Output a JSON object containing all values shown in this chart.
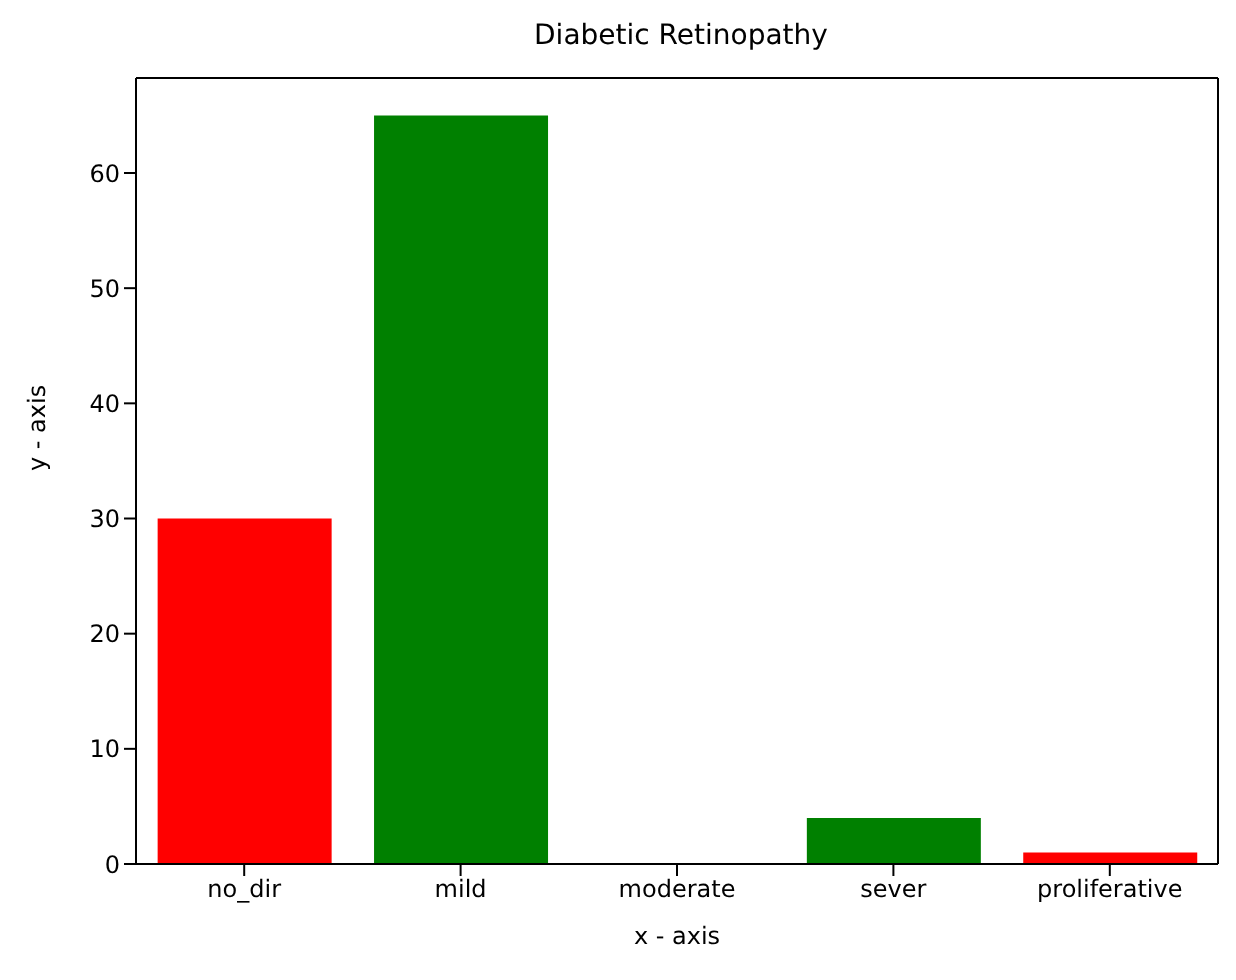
{
  "chart_data": {
    "type": "bar",
    "title": "Diabetic Retinopathy",
    "xlabel": "x - axis",
    "ylabel": "y - axis",
    "categories": [
      "no_dir",
      "mild",
      "moderate",
      "sever",
      "proliferative"
    ],
    "values": [
      30,
      65,
      0,
      4,
      1
    ],
    "colors": [
      "#ff0000",
      "#008000",
      "#ff0000",
      "#008000",
      "#ff0000"
    ],
    "ylim": [
      0,
      68.25
    ],
    "yticks": [
      0,
      10,
      20,
      30,
      40,
      50,
      60
    ],
    "grid": false,
    "legend": false
  }
}
